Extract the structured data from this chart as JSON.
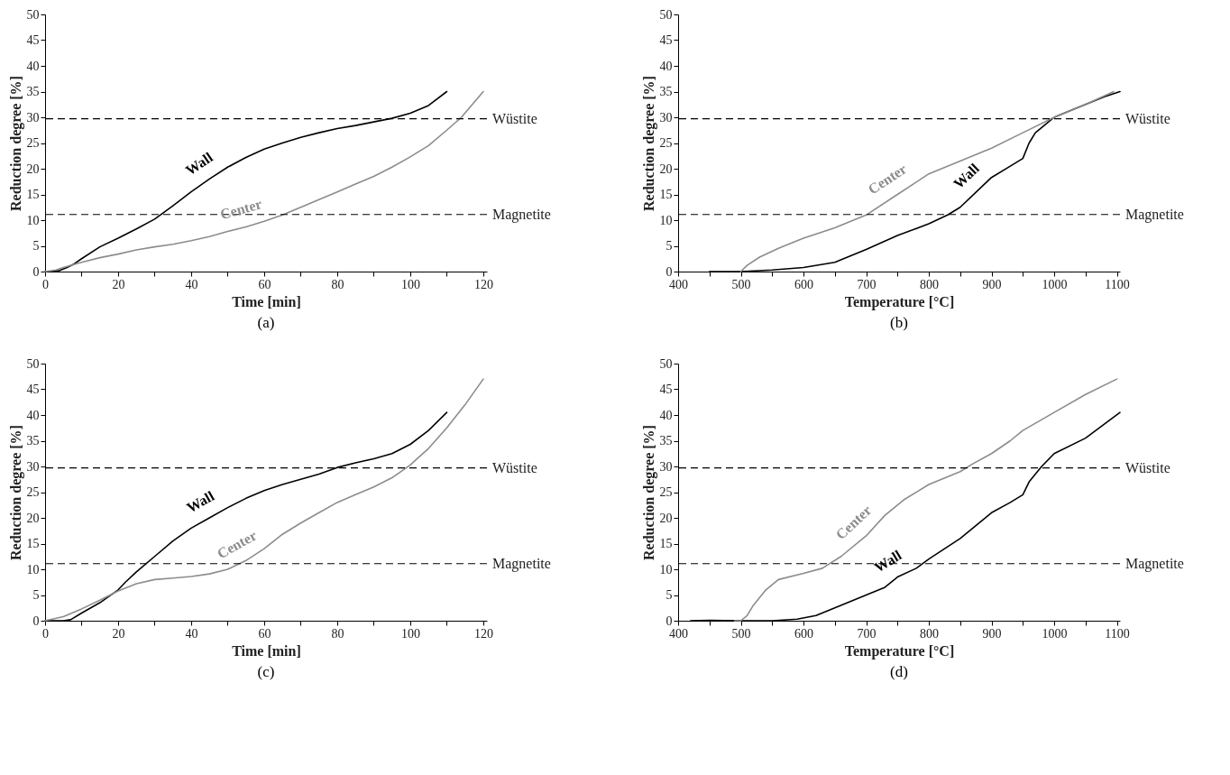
{
  "chart_data": [
    {
      "type": "line",
      "title": "(a)",
      "xlabel": "Time [min]",
      "ylabel": "Reduction degree [%]",
      "xlim": [
        0,
        121
      ],
      "ylim": [
        0,
        50
      ],
      "xticks": [
        0,
        {
          "value": 10,
          "label": null
        },
        20,
        {
          "value": 30,
          "label": null
        },
        40,
        {
          "value": 50,
          "label": null
        },
        60,
        {
          "value": 70,
          "label": null
        },
        80,
        {
          "value": 90,
          "label": null
        },
        100,
        {
          "value": 110,
          "label": null
        },
        120
      ],
      "yticks": [
        0,
        5,
        10,
        15,
        20,
        25,
        30,
        35,
        40,
        45,
        50
      ],
      "grid": false,
      "legend": false,
      "marker": "none",
      "line_style": "solid",
      "series": [
        {
          "name": "Wall",
          "color": "#000000",
          "x": [
            0,
            2,
            4,
            6,
            8,
            10,
            15,
            20,
            25,
            30,
            35,
            40,
            45,
            50,
            55,
            60,
            65,
            70,
            75,
            80,
            85,
            90,
            95,
            100,
            105,
            110
          ],
          "values": [
            0,
            0,
            0.2,
            0.8,
            1.5,
            2.5,
            4.8,
            6.5,
            8.3,
            10.2,
            12.8,
            15.5,
            18,
            20.3,
            22.2,
            23.8,
            25,
            26.1,
            27,
            27.8,
            28.4,
            29.1,
            29.8,
            30.8,
            32.3,
            35
          ]
        },
        {
          "name": "Center",
          "color": "#8c8c8c",
          "x": [
            0,
            3,
            5,
            10,
            15,
            20,
            25,
            30,
            35,
            40,
            45,
            50,
            55,
            60,
            65,
            70,
            75,
            80,
            85,
            90,
            95,
            100,
            105,
            110,
            114,
            117,
            120
          ],
          "values": [
            0,
            0.3,
            0.8,
            1.8,
            2.7,
            3.4,
            4.2,
            4.8,
            5.3,
            6,
            6.8,
            7.8,
            8.7,
            9.8,
            11,
            12.5,
            14,
            15.5,
            17,
            18.5,
            20.3,
            22.3,
            24.5,
            27.5,
            30,
            32.5,
            35
          ]
        }
      ],
      "ref_lines": [
        {
          "axis": "y",
          "value": 29.7,
          "label": "Wüstite",
          "color": "#000000",
          "line_style": "dashed"
        },
        {
          "axis": "y",
          "value": 11.1,
          "label": "Magnetite",
          "color": "#000000",
          "line_style": "dashed"
        }
      ]
    },
    {
      "type": "line",
      "title": "(b)",
      "xlabel": "Temperature [°C]",
      "ylabel": "Reduction degree [%]",
      "xlim": [
        400,
        1105
      ],
      "ylim": [
        0,
        50
      ],
      "xticks": [
        400,
        {
          "value": 450,
          "label": null
        },
        500,
        {
          "value": 550,
          "label": null
        },
        600,
        {
          "value": 650,
          "label": null
        },
        700,
        {
          "value": 750,
          "label": null
        },
        800,
        {
          "value": 850,
          "label": null
        },
        900,
        {
          "value": 950,
          "label": null
        },
        1000,
        {
          "value": 1050,
          "label": null
        },
        1100
      ],
      "yticks": [
        0,
        5,
        10,
        15,
        20,
        25,
        30,
        35,
        40,
        45,
        50
      ],
      "grid": false,
      "legend": false,
      "marker": "none",
      "line_style": "solid",
      "series": [
        {
          "name": "Wall",
          "color": "#000000",
          "x": [
            450,
            500,
            550,
            600,
            650,
            700,
            750,
            800,
            830,
            850,
            880,
            900,
            930,
            950,
            960,
            970,
            990,
            1000,
            1020,
            1050,
            1080,
            1105
          ],
          "values": [
            0,
            0,
            0.3,
            0.8,
            1.8,
            4.3,
            7,
            9.3,
            11,
            12.5,
            16,
            18.3,
            20.5,
            22,
            25,
            27,
            29,
            30,
            31,
            32.5,
            34,
            35
          ]
        },
        {
          "name": "Center",
          "color": "#8c8c8c",
          "x": [
            500,
            510,
            530,
            560,
            600,
            650,
            700,
            750,
            800,
            850,
            900,
            950,
            1000,
            1050,
            1095
          ],
          "values": [
            0,
            1.2,
            2.8,
            4.5,
            6.5,
            8.5,
            11,
            15,
            19,
            21.5,
            24,
            27,
            30,
            32.5,
            35
          ]
        }
      ],
      "ref_lines": [
        {
          "axis": "y",
          "value": 29.7,
          "label": "Wüstite",
          "color": "#000000",
          "line_style": "dashed"
        },
        {
          "axis": "y",
          "value": 11.1,
          "label": "Magnetite",
          "color": "#000000",
          "line_style": "dashed"
        }
      ]
    },
    {
      "type": "line",
      "title": "(c)",
      "xlabel": "Time [min]",
      "ylabel": "Reduction degree [%]",
      "xlim": [
        0,
        121
      ],
      "ylim": [
        0,
        50
      ],
      "xticks": [
        0,
        {
          "value": 10,
          "label": null
        },
        20,
        {
          "value": 30,
          "label": null
        },
        40,
        {
          "value": 50,
          "label": null
        },
        60,
        {
          "value": 70,
          "label": null
        },
        80,
        {
          "value": 90,
          "label": null
        },
        100,
        {
          "value": 110,
          "label": null
        },
        120
      ],
      "yticks": [
        0,
        5,
        10,
        15,
        20,
        25,
        30,
        35,
        40,
        45,
        50
      ],
      "grid": false,
      "legend": false,
      "marker": "none",
      "line_style": "solid",
      "series": [
        {
          "name": "Wall",
          "color": "#000000",
          "x": [
            0,
            5,
            7,
            10,
            15,
            20,
            22,
            25,
            30,
            35,
            40,
            45,
            50,
            55,
            60,
            65,
            70,
            75,
            80,
            85,
            90,
            95,
            100,
            105,
            110
          ],
          "values": [
            0,
            0,
            0.2,
            1.5,
            3.5,
            6,
            7.5,
            9.5,
            12.5,
            15.5,
            18,
            20,
            22,
            23.8,
            25.3,
            26.5,
            27.5,
            28.5,
            29.8,
            30.7,
            31.5,
            32.5,
            34.3,
            37,
            40.5
          ]
        },
        {
          "name": "Center",
          "color": "#8c8c8c",
          "x": [
            0,
            5,
            10,
            15,
            20,
            25,
            30,
            35,
            40,
            45,
            50,
            55,
            60,
            65,
            70,
            75,
            80,
            85,
            90,
            95,
            100,
            105,
            110,
            115,
            120
          ],
          "values": [
            0,
            0.8,
            2.3,
            4,
            5.8,
            7.2,
            8,
            8.3,
            8.6,
            9.1,
            10,
            11.7,
            14,
            16.8,
            19,
            21,
            23,
            24.5,
            26,
            27.8,
            30.3,
            33.5,
            37.5,
            42,
            47
          ]
        }
      ],
      "ref_lines": [
        {
          "axis": "y",
          "value": 29.7,
          "label": "Wüstite",
          "color": "#000000",
          "line_style": "dashed"
        },
        {
          "axis": "y",
          "value": 11.1,
          "label": "Magnetite",
          "color": "#000000",
          "line_style": "dashed"
        }
      ]
    },
    {
      "type": "line",
      "title": "(d)",
      "xlabel": "Temperature [°C]",
      "ylabel": "Reduction degree [%]",
      "xlim": [
        400,
        1105
      ],
      "ylim": [
        0,
        50
      ],
      "xticks": [
        400,
        {
          "value": 450,
          "label": null
        },
        500,
        {
          "value": 550,
          "label": null
        },
        600,
        {
          "value": 650,
          "label": null
        },
        700,
        {
          "value": 750,
          "label": null
        },
        800,
        {
          "value": 850,
          "label": null
        },
        900,
        {
          "value": 950,
          "label": null
        },
        1000,
        {
          "value": 1050,
          "label": null
        },
        1100
      ],
      "yticks": [
        0,
        5,
        10,
        15,
        20,
        25,
        30,
        35,
        40,
        45,
        50
      ],
      "grid": false,
      "legend": false,
      "marker": "none",
      "line_style": "solid",
      "series": [
        {
          "name": "Wall",
          "color": "#000000",
          "x": [
            420,
            450,
            500,
            550,
            590,
            620,
            650,
            700,
            730,
            750,
            780,
            800,
            850,
            900,
            930,
            950,
            960,
            980,
            1000,
            1050,
            1105
          ],
          "values": [
            0,
            0.1,
            0,
            0,
            0.3,
            1,
            2.5,
            5,
            6.5,
            8.5,
            10.2,
            12,
            16,
            21,
            23,
            24.5,
            27,
            30,
            32.5,
            35.5,
            40.5
          ]
        },
        {
          "name": "Center",
          "color": "#8c8c8c",
          "x": [
            490,
            500,
            510,
            520,
            540,
            560,
            600,
            630,
            660,
            700,
            730,
            760,
            800,
            850,
            870,
            900,
            930,
            950,
            1000,
            1050,
            1100
          ],
          "values": [
            0,
            0,
            1,
            3,
            6,
            8,
            9.2,
            10.2,
            12.5,
            16.5,
            20.5,
            23.5,
            26.5,
            29,
            30.5,
            32.5,
            35,
            37,
            40.5,
            44,
            47
          ]
        }
      ],
      "ref_lines": [
        {
          "axis": "y",
          "value": 29.7,
          "label": "Wüstite",
          "color": "#000000",
          "line_style": "dashed"
        },
        {
          "axis": "y",
          "value": 11.1,
          "label": "Magnetite",
          "color": "#000000",
          "line_style": "dashed"
        }
      ]
    }
  ]
}
